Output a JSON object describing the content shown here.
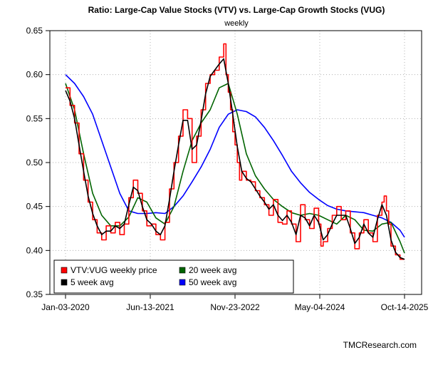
{
  "chart_data": {
    "type": "line",
    "title": "Ratio: Large-Cap Value Stocks (VTV) vs. Large-Cap Growth Stocks (VUG)",
    "subtitle": "weekly",
    "credit": "TMCResearch.com",
    "ylim": [
      0.35,
      0.65
    ],
    "y_ticks": [
      "0.35",
      "0.40",
      "0.45",
      "0.50",
      "0.55",
      "0.60",
      "0.65"
    ],
    "x_ticks": [
      "Jan-03-2020",
      "Jun-13-2021",
      "Nov-23-2022",
      "May-04-2024",
      "Oct-14-2025"
    ],
    "x_tick_index": [
      0,
      75,
      150,
      225,
      300
    ],
    "grid": true,
    "legend_position": "bottom-left",
    "series": [
      {
        "name": "VTV:VUG weekly price",
        "color": "#ff0000",
        "style": "step",
        "x": [
          0,
          4,
          8,
          12,
          16,
          20,
          24,
          28,
          32,
          36,
          40,
          44,
          48,
          52,
          56,
          60,
          64,
          68,
          72,
          76,
          80,
          84,
          88,
          92,
          96,
          100,
          104,
          108,
          112,
          116,
          120,
          124,
          128,
          132,
          136,
          140,
          142,
          144,
          146,
          148,
          150,
          152,
          154,
          156,
          160,
          164,
          168,
          172,
          176,
          180,
          184,
          188,
          192,
          196,
          200,
          204,
          208,
          212,
          216,
          220,
          224,
          226,
          228,
          232,
          236,
          240,
          244,
          248,
          252,
          256,
          260,
          264,
          268,
          272,
          276,
          280,
          282,
          284,
          286,
          288,
          292,
          296,
          300
        ],
        "values": [
          0.585,
          0.565,
          0.545,
          0.51,
          0.48,
          0.455,
          0.435,
          0.42,
          0.412,
          0.428,
          0.42,
          0.432,
          0.418,
          0.43,
          0.46,
          0.48,
          0.465,
          0.445,
          0.428,
          0.43,
          0.418,
          0.412,
          0.432,
          0.47,
          0.5,
          0.53,
          0.56,
          0.55,
          0.5,
          0.53,
          0.56,
          0.59,
          0.6,
          0.605,
          0.62,
          0.635,
          0.6,
          0.58,
          0.56,
          0.535,
          0.52,
          0.5,
          0.48,
          0.49,
          0.48,
          0.478,
          0.468,
          0.46,
          0.452,
          0.44,
          0.458,
          0.432,
          0.43,
          0.445,
          0.43,
          0.41,
          0.452,
          0.435,
          0.425,
          0.448,
          0.43,
          0.405,
          0.41,
          0.425,
          0.44,
          0.45,
          0.435,
          0.445,
          0.42,
          0.402,
          0.42,
          0.435,
          0.42,
          0.41,
          0.44,
          0.455,
          0.462,
          0.445,
          0.43,
          0.405,
          0.395,
          0.39,
          0.39
        ]
      },
      {
        "name": "5 week avg",
        "color": "#000000",
        "style": "line",
        "x": [
          0,
          4,
          8,
          12,
          16,
          20,
          24,
          28,
          32,
          36,
          40,
          44,
          48,
          52,
          56,
          60,
          64,
          68,
          72,
          76,
          80,
          84,
          88,
          92,
          96,
          100,
          104,
          108,
          112,
          116,
          120,
          124,
          128,
          132,
          136,
          140,
          144,
          148,
          152,
          156,
          160,
          164,
          168,
          172,
          176,
          180,
          184,
          188,
          192,
          196,
          200,
          204,
          208,
          212,
          216,
          220,
          224,
          228,
          232,
          236,
          240,
          244,
          248,
          252,
          256,
          260,
          264,
          268,
          272,
          276,
          280,
          284,
          288,
          292,
          296,
          300
        ],
        "values": [
          0.582,
          0.57,
          0.55,
          0.52,
          0.49,
          0.462,
          0.442,
          0.428,
          0.418,
          0.422,
          0.422,
          0.428,
          0.425,
          0.43,
          0.452,
          0.472,
          0.468,
          0.45,
          0.435,
          0.43,
          0.422,
          0.418,
          0.428,
          0.458,
          0.49,
          0.52,
          0.548,
          0.548,
          0.515,
          0.52,
          0.548,
          0.578,
          0.598,
          0.605,
          0.612,
          0.618,
          0.59,
          0.555,
          0.518,
          0.49,
          0.482,
          0.478,
          0.47,
          0.462,
          0.455,
          0.447,
          0.452,
          0.44,
          0.434,
          0.44,
          0.432,
          0.418,
          0.44,
          0.437,
          0.428,
          0.44,
          0.432,
          0.412,
          0.418,
          0.43,
          0.44,
          0.44,
          0.44,
          0.425,
          0.408,
          0.415,
          0.43,
          0.42,
          0.415,
          0.435,
          0.452,
          0.44,
          0.412,
          0.398,
          0.392,
          0.39
        ]
      },
      {
        "name": "20 week avg",
        "color": "#006400",
        "style": "line",
        "x": [
          0,
          8,
          16,
          24,
          32,
          40,
          48,
          56,
          64,
          72,
          80,
          88,
          96,
          104,
          112,
          120,
          128,
          136,
          144,
          152,
          160,
          168,
          176,
          184,
          192,
          200,
          208,
          216,
          224,
          232,
          240,
          248,
          256,
          264,
          272,
          280,
          288,
          296,
          300
        ],
        "values": [
          0.59,
          0.56,
          0.51,
          0.465,
          0.44,
          0.428,
          0.428,
          0.438,
          0.46,
          0.455,
          0.437,
          0.43,
          0.45,
          0.49,
          0.525,
          0.545,
          0.56,
          0.585,
          0.59,
          0.555,
          0.51,
          0.485,
          0.47,
          0.458,
          0.45,
          0.443,
          0.44,
          0.442,
          0.44,
          0.435,
          0.43,
          0.44,
          0.435,
          0.423,
          0.422,
          0.43,
          0.432,
          0.41,
          0.397
        ]
      },
      {
        "name": "50 week avg",
        "color": "#0000ff",
        "style": "line",
        "x": [
          0,
          8,
          16,
          24,
          32,
          40,
          48,
          56,
          64,
          72,
          80,
          88,
          96,
          104,
          112,
          120,
          128,
          136,
          144,
          152,
          160,
          168,
          176,
          184,
          192,
          200,
          208,
          216,
          224,
          232,
          240,
          248,
          256,
          264,
          272,
          280,
          288,
          296,
          300
        ],
        "values": [
          0.6,
          0.59,
          0.575,
          0.555,
          0.525,
          0.495,
          0.465,
          0.445,
          0.442,
          0.442,
          0.443,
          0.442,
          0.45,
          0.462,
          0.478,
          0.495,
          0.515,
          0.54,
          0.555,
          0.56,
          0.558,
          0.552,
          0.54,
          0.525,
          0.508,
          0.49,
          0.477,
          0.466,
          0.458,
          0.451,
          0.447,
          0.445,
          0.444,
          0.443,
          0.44,
          0.437,
          0.432,
          0.423,
          0.415
        ]
      }
    ],
    "legend": [
      {
        "name": "VTV:VUG weekly price",
        "color": "#ff0000"
      },
      {
        "name": "20 week avg",
        "color": "#006400"
      },
      {
        "name": "5 week avg",
        "color": "#000000"
      },
      {
        "name": "50 week avg",
        "color": "#0000ff"
      }
    ]
  }
}
